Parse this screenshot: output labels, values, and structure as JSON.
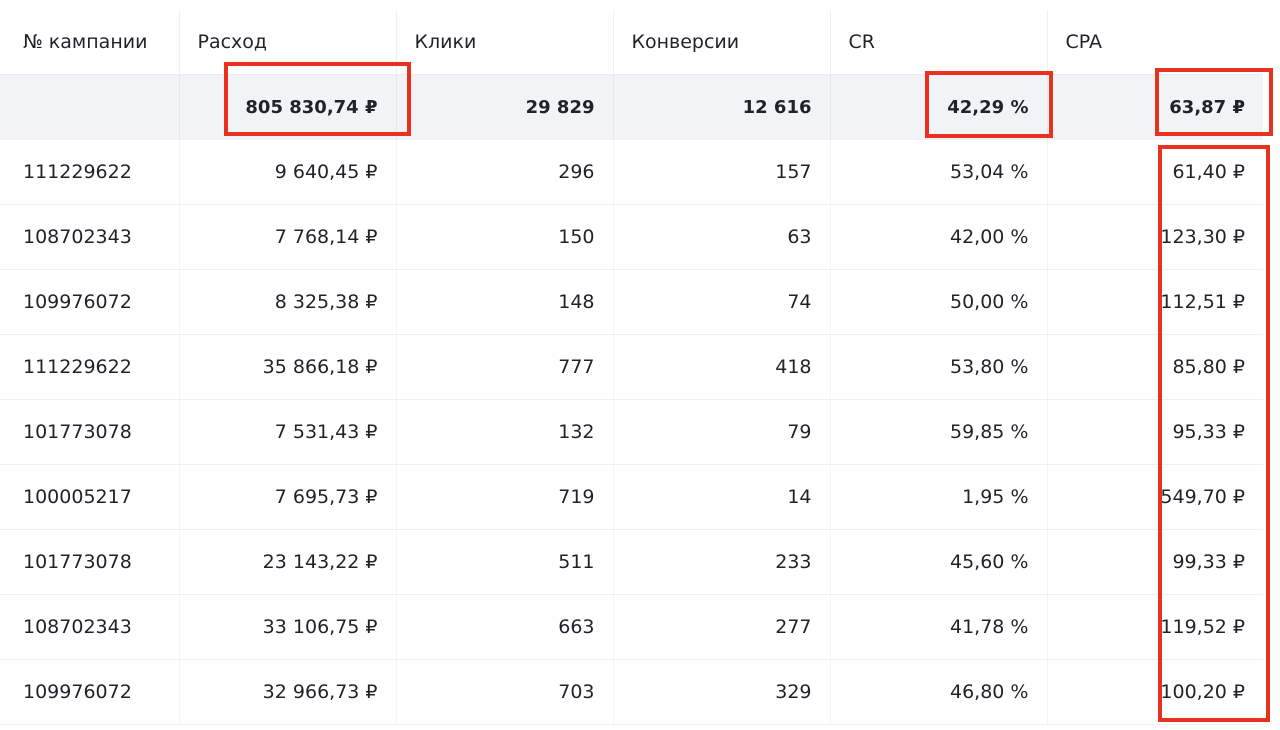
{
  "table": {
    "headers": [
      "№ кампании",
      "Расход",
      "Клики",
      "Конверсии",
      "CR",
      "CPA"
    ],
    "total": [
      "",
      "805 830,74 ₽",
      "29 829",
      "12 616",
      "42,29 %",
      "63,87 ₽"
    ],
    "rows": [
      [
        "111229622",
        "9 640,45 ₽",
        "296",
        "157",
        "53,04 %",
        "61,40 ₽"
      ],
      [
        "108702343",
        "7 768,14 ₽",
        "150",
        "63",
        "42,00 %",
        "123,30 ₽"
      ],
      [
        "109976072",
        "8 325,38 ₽",
        "148",
        "74",
        "50,00 %",
        "112,51 ₽"
      ],
      [
        "111229622",
        "35 866,18 ₽",
        "777",
        "418",
        "53,80 %",
        "85,80 ₽"
      ],
      [
        "101773078",
        "7 531,43 ₽",
        "132",
        "79",
        "59,85 %",
        "95,33 ₽"
      ],
      [
        "100005217",
        "7 695,73 ₽",
        "719",
        "14",
        "1,95 %",
        "549,70 ₽"
      ],
      [
        "101773078",
        "23 143,22 ₽",
        "511",
        "233",
        "45,60 %",
        "99,33 ₽"
      ],
      [
        "108702343",
        "33 106,75 ₽",
        "663",
        "277",
        "41,78 %",
        "119,52 ₽"
      ],
      [
        "109976072",
        "32 966,73 ₽",
        "703",
        "329",
        "46,80 %",
        "100,20 ₽"
      ]
    ]
  },
  "highlights": {
    "color": "#e8321f",
    "marked": [
      "total-rashod",
      "total-cr",
      "total-cpa",
      "cpa-column"
    ]
  }
}
